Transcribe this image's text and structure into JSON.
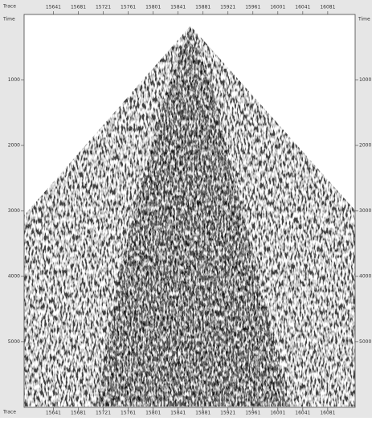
{
  "chart_data": {
    "type": "seismic",
    "x_label": "Trace",
    "y_label": "Time",
    "xlim": [
      15594,
      16125
    ],
    "xticks": [
      15641,
      15681,
      15721,
      15761,
      15801,
      15841,
      15881,
      15921,
      15961,
      16001,
      16041,
      16081
    ],
    "ylim": [
      0,
      6000
    ],
    "yticks": [
      1000,
      2000,
      3000,
      4000,
      5000
    ]
  }
}
